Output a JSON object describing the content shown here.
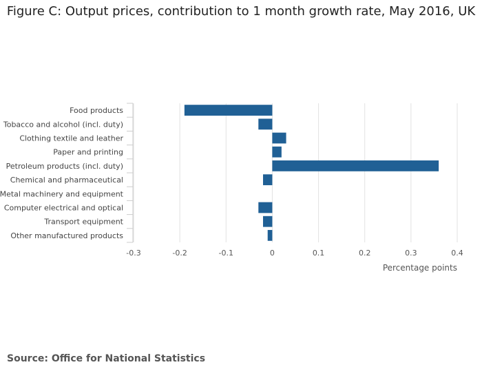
{
  "chart_data": {
    "type": "bar",
    "orientation": "horizontal",
    "title": "Figure C: Output prices, contribution to 1 month growth rate, May 2016, UK",
    "categories": [
      "Food products",
      "Tobacco and alcohol (incl. duty)",
      "Clothing textile and leather",
      "Paper and printing",
      "Petroleum products (incl. duty)",
      "Chemical and pharmaceutical",
      "Metal machinery and equipment",
      "Computer electrical and optical",
      "Transport equipment",
      "Other manufactured products"
    ],
    "values": [
      -0.19,
      -0.03,
      0.03,
      0.02,
      0.36,
      -0.02,
      0.0,
      -0.03,
      -0.02,
      -0.01
    ],
    "xlabel": "Percentage points",
    "ylabel": "",
    "xlim": [
      -0.3,
      0.4
    ],
    "xticks": [
      -0.3,
      -0.2,
      -0.1,
      0,
      0.1,
      0.2,
      0.3,
      0.4
    ],
    "xtick_labels": [
      "-0.3",
      "-0.2",
      "-0.1",
      "0",
      "0.1",
      "0.2",
      "0.3",
      "0.4"
    ],
    "bar_color": "#206095",
    "grid": true
  },
  "source": {
    "text": "Source: Office for National Statistics"
  }
}
